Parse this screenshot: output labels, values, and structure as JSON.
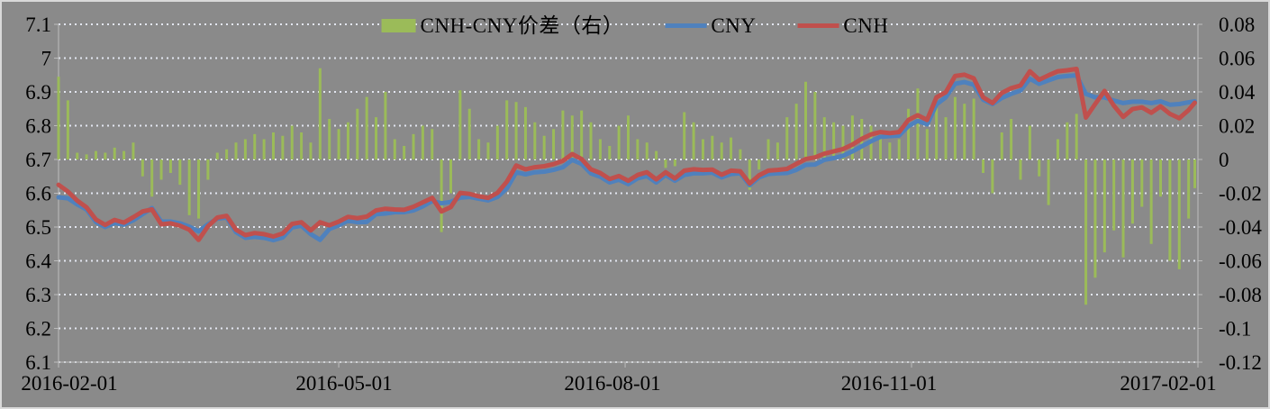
{
  "colors": {
    "background": "#8a8a8a",
    "grid": "#e3e6f0",
    "axis": "#bdbdbd",
    "bar_green": "#9BBB59",
    "cny_blue": "#4F81BD",
    "cnh_red": "#C0504D",
    "text": "#000000"
  },
  "legend": {
    "items": [
      {
        "label": "CNH-CNY价差（右）",
        "swatch": "bar",
        "color": "#9BBB59"
      },
      {
        "label": "CNY",
        "swatch": "line",
        "color": "#4F81BD"
      },
      {
        "label": "CNH",
        "swatch": "line",
        "color": "#C0504D"
      }
    ]
  },
  "chart_data": {
    "type": "combo",
    "title": "",
    "x_axis": {
      "unit": "days since 2016-02-01",
      "range": [
        0,
        366
      ],
      "tick_days": [
        0,
        90,
        182,
        274,
        366
      ],
      "tick_labels": [
        "2016-02-01",
        "2016-05-01",
        "2016-08-01",
        "2016-11-01",
        "2017-02-01"
      ]
    },
    "y_left": {
      "range": [
        6.1,
        7.1
      ],
      "ticks": [
        "7.1",
        "7",
        "6.9",
        "6.8",
        "6.7",
        "6.6",
        "6.5",
        "6.4",
        "6.3",
        "6.2",
        "6.1"
      ],
      "grid": true
    },
    "y_right": {
      "range": [
        -0.12,
        0.08
      ],
      "ticks": [
        "0.08",
        "0.06",
        "0.04",
        "0.02",
        "0",
        "-0.02",
        "-0.04",
        "-0.06",
        "-0.08",
        "-0.1",
        "-0.12"
      ]
    },
    "days": [
      0,
      3,
      6,
      9,
      12,
      15,
      18,
      21,
      24,
      27,
      30,
      33,
      36,
      39,
      42,
      45,
      48,
      51,
      54,
      57,
      60,
      63,
      66,
      69,
      72,
      75,
      78,
      81,
      84,
      87,
      90,
      93,
      96,
      99,
      102,
      105,
      108,
      111,
      114,
      117,
      120,
      123,
      126,
      129,
      132,
      135,
      138,
      141,
      144,
      147,
      150,
      153,
      156,
      159,
      162,
      165,
      168,
      171,
      174,
      177,
      180,
      183,
      186,
      189,
      192,
      195,
      198,
      201,
      204,
      207,
      210,
      213,
      216,
      219,
      222,
      225,
      228,
      231,
      234,
      237,
      240,
      243,
      246,
      249,
      252,
      255,
      258,
      261,
      264,
      267,
      270,
      273,
      276,
      279,
      282,
      285,
      288,
      291,
      294,
      297,
      300,
      303,
      306,
      309,
      312,
      315,
      318,
      321,
      324,
      327,
      330,
      333,
      336,
      339,
      342,
      345,
      348,
      351,
      354,
      357,
      360,
      363,
      365
    ],
    "series": [
      {
        "name": "CNH-CNY价差（右）",
        "type": "bar",
        "axis": "right",
        "color": "#9BBB59",
        "values": [
          0.049,
          0.035,
          0.004,
          0.003,
          0.005,
          0.004,
          0.007,
          0.005,
          0.01,
          -0.01,
          -0.022,
          -0.012,
          -0.008,
          -0.015,
          -0.033,
          -0.035,
          -0.012,
          0.004,
          0.006,
          0.01,
          0.012,
          0.015,
          0.012,
          0.016,
          0.014,
          0.02,
          0.016,
          0.01,
          0.054,
          0.024,
          0.018,
          0.022,
          0.03,
          0.037,
          0.025,
          0.04,
          0.012,
          0.008,
          0.015,
          0.02,
          0.018,
          -0.043,
          -0.02,
          0.041,
          0.03,
          0.012,
          0.01,
          0.02,
          0.035,
          0.034,
          0.031,
          0.022,
          0.014,
          0.018,
          0.029,
          0.026,
          0.029,
          0.022,
          0.012,
          0.008,
          0.02,
          0.026,
          0.012,
          0.01,
          0.005,
          -0.005,
          -0.004,
          0.028,
          0.022,
          0.012,
          0.014,
          0.01,
          0.013,
          0.006,
          -0.018,
          -0.006,
          0.012,
          0.01,
          0.025,
          0.033,
          0.046,
          0.04,
          0.025,
          0.022,
          0.02,
          0.026,
          0.024,
          0.02,
          0.015,
          0.01,
          0.012,
          0.03,
          0.042,
          0.018,
          0.038,
          0.025,
          0.037,
          0.033,
          0.036,
          -0.008,
          -0.02,
          0.016,
          0.024,
          -0.012,
          0.02,
          -0.01,
          -0.027,
          0.012,
          0.022,
          0.027,
          -0.086,
          -0.07,
          -0.055,
          -0.042,
          -0.058,
          -0.038,
          -0.028,
          -0.05,
          -0.022,
          -0.06,
          -0.065,
          -0.035,
          -0.017
        ]
      },
      {
        "name": "CNY",
        "type": "line",
        "axis": "left",
        "color": "#4F81BD",
        "values": [
          6.588,
          6.585,
          6.567,
          6.552,
          6.515,
          6.5,
          6.512,
          6.507,
          6.52,
          6.538,
          6.556,
          6.516,
          6.516,
          6.511,
          6.501,
          6.487,
          6.508,
          6.525,
          6.528,
          6.485,
          6.468,
          6.471,
          6.468,
          6.461,
          6.469,
          6.499,
          6.504,
          6.479,
          6.462,
          6.494,
          6.505,
          6.519,
          6.514,
          6.515,
          6.538,
          6.54,
          6.544,
          6.544,
          6.549,
          6.561,
          6.577,
          6.57,
          6.574,
          6.587,
          6.589,
          6.584,
          6.579,
          6.589,
          6.614,
          6.662,
          6.656,
          6.662,
          6.664,
          6.669,
          6.677,
          6.699,
          6.687,
          6.659,
          6.649,
          6.632,
          6.64,
          6.627,
          6.644,
          6.651,
          6.632,
          6.654,
          6.637,
          6.654,
          6.659,
          6.659,
          6.661,
          6.647,
          6.657,
          6.659,
          6.624,
          6.647,
          6.657,
          6.659,
          6.66,
          6.669,
          6.684,
          6.685,
          6.699,
          6.704,
          6.711,
          6.724,
          6.739,
          6.754,
          6.767,
          6.769,
          6.771,
          6.799,
          6.814,
          6.804,
          6.863,
          6.884,
          6.924,
          6.929,
          6.921,
          6.877,
          6.864,
          6.882,
          6.894,
          6.904,
          6.939,
          6.924,
          6.934,
          6.944,
          6.947,
          6.949,
          6.894,
          6.884,
          6.884,
          6.874,
          6.867,
          6.871,
          6.871,
          6.867,
          6.872,
          6.862,
          6.864,
          6.869,
          6.872
        ]
      },
      {
        "name": "CNH",
        "type": "line",
        "axis": "left",
        "color": "#C0504D",
        "values": [
          6.625,
          6.605,
          6.578,
          6.558,
          6.522,
          6.506,
          6.521,
          6.513,
          6.529,
          6.546,
          6.552,
          6.508,
          6.511,
          6.504,
          6.492,
          6.462,
          6.502,
          6.528,
          6.533,
          6.492,
          6.476,
          6.482,
          6.479,
          6.472,
          6.481,
          6.509,
          6.514,
          6.49,
          6.514,
          6.505,
          6.516,
          6.53,
          6.526,
          6.531,
          6.549,
          6.554,
          6.552,
          6.551,
          6.56,
          6.573,
          6.586,
          6.546,
          6.559,
          6.601,
          6.598,
          6.591,
          6.586,
          6.601,
          6.634,
          6.682,
          6.671,
          6.677,
          6.68,
          6.686,
          6.696,
          6.716,
          6.701,
          6.671,
          6.66,
          6.642,
          6.651,
          6.637,
          6.654,
          6.662,
          6.641,
          6.662,
          6.644,
          6.667,
          6.671,
          6.669,
          6.67,
          6.655,
          6.667,
          6.665,
          6.629,
          6.653,
          6.667,
          6.669,
          6.672,
          6.687,
          6.701,
          6.706,
          6.717,
          6.724,
          6.731,
          6.744,
          6.761,
          6.774,
          6.781,
          6.778,
          6.781,
          6.817,
          6.831,
          6.817,
          6.884,
          6.899,
          6.947,
          6.951,
          6.94,
          6.884,
          6.867,
          6.897,
          6.911,
          6.919,
          6.961,
          6.936,
          6.949,
          6.961,
          6.964,
          6.968,
          6.824,
          6.864,
          6.903,
          6.859,
          6.826,
          6.849,
          6.854,
          6.838,
          6.857,
          6.835,
          6.822,
          6.846,
          6.868
        ]
      }
    ]
  }
}
